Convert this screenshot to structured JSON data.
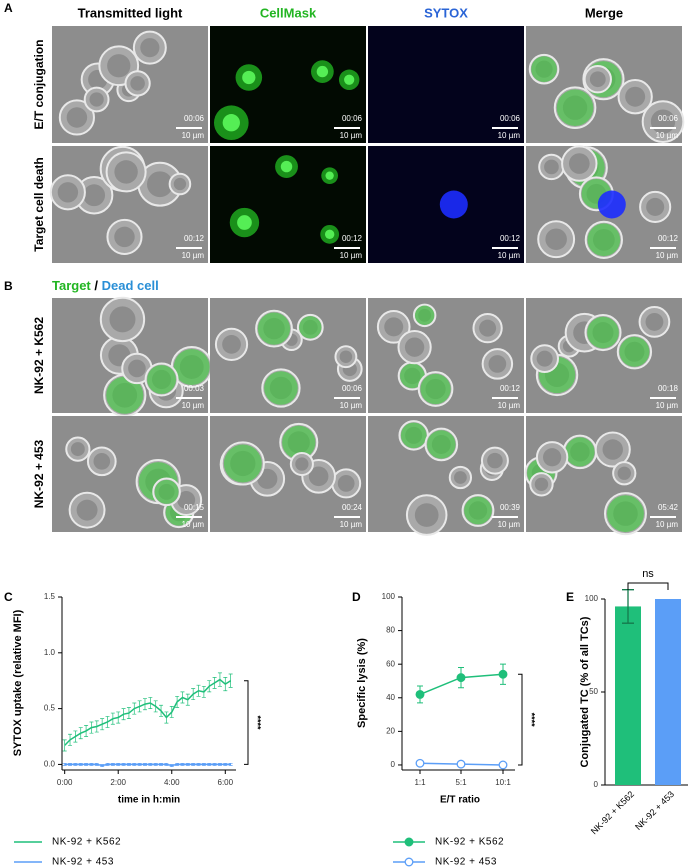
{
  "panel_a": {
    "label": "A",
    "columns": [
      "Transmitted light",
      "CellMask",
      "SYTOX",
      "Merge"
    ],
    "rows": [
      {
        "label": "E/T conjugation",
        "time": "00:06"
      },
      {
        "label": "Target cell death",
        "time": "00:12"
      }
    ],
    "scale_bar": "10 µm"
  },
  "panel_b": {
    "label": "B",
    "legend": [
      "Target",
      "/",
      "Dead cell"
    ],
    "rows": [
      {
        "label": "NK-92 + K562",
        "times": [
          "00:03",
          "00:06",
          "00:12",
          "00:18"
        ]
      },
      {
        "label": "NK-92 + 453",
        "times": [
          "00:15",
          "00:24",
          "00:39",
          "05:42"
        ]
      }
    ],
    "scale_bar": "10 µm"
  },
  "chart_data": [
    {
      "panel": "C",
      "type": "line",
      "ylabel": "SYTOX uptake (relative MFI)",
      "xlabel": "time in h:min",
      "x": [
        0,
        0.2,
        0.4,
        0.6,
        0.8,
        1.0,
        1.2,
        1.4,
        1.6,
        1.8,
        2.0,
        2.2,
        2.4,
        2.6,
        2.8,
        3.0,
        3.2,
        3.4,
        3.6,
        3.8,
        4.0,
        4.2,
        4.4,
        4.6,
        4.8,
        5.0,
        5.2,
        5.4,
        5.6,
        5.8,
        6.0,
        6.2
      ],
      "xlim": [
        -0.1,
        6.4
      ],
      "xticks": [
        {
          "value": 0,
          "label": "0:00"
        },
        {
          "value": 2,
          "label": "2:00"
        },
        {
          "value": 4,
          "label": "4:00"
        },
        {
          "value": 6,
          "label": "6:00"
        }
      ],
      "ylim": [
        -0.05,
        1.5
      ],
      "yticks": [
        {
          "value": 0,
          "label": "0.0"
        },
        {
          "value": 0.5,
          "label": "0.5"
        },
        {
          "value": 1,
          "label": "1.0"
        },
        {
          "value": 1.5,
          "label": "1.5"
        }
      ],
      "series": [
        {
          "name": "NK-92 + K562",
          "color": "#1fbf7a",
          "values": [
            0.17,
            0.22,
            0.25,
            0.28,
            0.3,
            0.33,
            0.34,
            0.36,
            0.38,
            0.41,
            0.42,
            0.45,
            0.46,
            0.5,
            0.52,
            0.54,
            0.55,
            0.52,
            0.48,
            0.42,
            0.47,
            0.56,
            0.6,
            0.58,
            0.63,
            0.66,
            0.65,
            0.7,
            0.73,
            0.76,
            0.72,
            0.75
          ],
          "errors": [
            0.05,
            0.05,
            0.05,
            0.05,
            0.05,
            0.05,
            0.05,
            0.05,
            0.05,
            0.05,
            0.05,
            0.05,
            0.05,
            0.05,
            0.05,
            0.05,
            0.05,
            0.05,
            0.05,
            0.05,
            0.05,
            0.05,
            0.05,
            0.05,
            0.05,
            0.05,
            0.05,
            0.05,
            0.05,
            0.06,
            0.06,
            0.06
          ]
        },
        {
          "name": "NK-92 + 453",
          "color": "#5b9ef7",
          "values": [
            0,
            0,
            0,
            0,
            0,
            0,
            0,
            -0.01,
            0,
            0,
            0,
            0,
            0,
            0,
            0,
            0,
            0,
            0,
            0,
            0,
            -0.01,
            0,
            0,
            0,
            0,
            0,
            0,
            0,
            0,
            0,
            0,
            0
          ],
          "errors": [
            0.01,
            0.01,
            0.01,
            0.01,
            0.01,
            0.01,
            0.01,
            0.01,
            0.01,
            0.01,
            0.01,
            0.01,
            0.01,
            0.01,
            0.01,
            0.01,
            0.01,
            0.01,
            0.01,
            0.01,
            0.01,
            0.01,
            0.01,
            0.01,
            0.01,
            0.01,
            0.01,
            0.01,
            0.01,
            0.01,
            0.01,
            0.01
          ]
        }
      ],
      "annotation": "****"
    },
    {
      "panel": "D",
      "type": "line",
      "ylabel": "Specific lysis (%)",
      "xlabel": "E/T ratio",
      "categories": [
        "1:1",
        "5:1",
        "10:1"
      ],
      "ylim": [
        -3,
        100
      ],
      "yticks": [
        0,
        20,
        40,
        60,
        80,
        100
      ],
      "series": [
        {
          "name": "NK-92 + K562",
          "color": "#1fbf7a",
          "values": [
            42,
            52,
            54
          ],
          "errors": [
            5,
            6,
            6
          ],
          "marker": "filled"
        },
        {
          "name": "NK-92 + 453",
          "color": "#5b9ef7",
          "values": [
            1,
            0.5,
            0
          ],
          "errors": [
            1,
            1,
            1
          ],
          "marker": "open"
        }
      ],
      "annotation": "****"
    },
    {
      "panel": "E",
      "type": "bar",
      "ylabel": "Conjugated TC  (% of  all TCs)",
      "categories": [
        "NK-92 + K562",
        "NK-92 + 453"
      ],
      "values": [
        96,
        100
      ],
      "errors": [
        9,
        null
      ],
      "colors": [
        "#1fbf7a",
        "#5b9ef7"
      ],
      "ylim": [
        0,
        100
      ],
      "yticks": [
        0,
        50,
        100
      ],
      "annotation": "ns"
    }
  ]
}
